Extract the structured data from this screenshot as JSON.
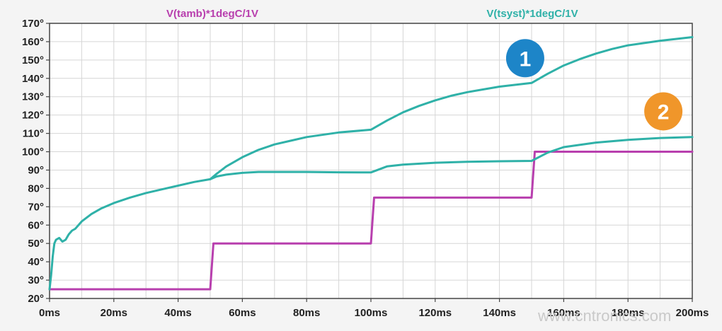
{
  "chart_data": {
    "type": "line",
    "x_unit": "ms",
    "y_unit": "°",
    "xlim": [
      0,
      200
    ],
    "ylim": [
      20,
      170
    ],
    "x_ticks": [
      0,
      20,
      40,
      60,
      80,
      100,
      120,
      140,
      160,
      180,
      200
    ],
    "x_tick_labels": [
      "0ms",
      "20ms",
      "40ms",
      "60ms",
      "80ms",
      "100ms",
      "120ms",
      "140ms",
      "160ms",
      "180ms",
      "200ms"
    ],
    "y_ticks": [
      20,
      30,
      40,
      50,
      60,
      70,
      80,
      90,
      100,
      110,
      120,
      130,
      140,
      150,
      160,
      170
    ],
    "y_tick_labels": [
      "20°",
      "30°",
      "40°",
      "50°",
      "60°",
      "70°",
      "80°",
      "90°",
      "100°",
      "110°",
      "120°",
      "130°",
      "140°",
      "150°",
      "160°",
      "170°"
    ],
    "grid": true,
    "legend_placement": "top",
    "series": [
      {
        "name": "V(tamb)*1degC/1V",
        "color": "#b83fae",
        "x": [
          0,
          50,
          51,
          100,
          101,
          150,
          151,
          200
        ],
        "y": [
          25,
          25,
          50,
          50,
          75,
          75,
          100,
          100
        ]
      },
      {
        "name": "V(tsyst)*1degC/1V",
        "color": "#2fb1a8",
        "curves": [
          {
            "x": [
              0,
              0.5,
              1,
              1.5,
              2,
              3,
              4,
              5,
              6,
              7,
              8,
              10,
              13,
              16,
              20,
              25,
              30,
              35,
              40,
              45,
              50
            ],
            "y": [
              25,
              33,
              43,
              50,
              52,
              53,
              51,
              52,
              55,
              57,
              58,
              62,
              66,
              69,
              72,
              75,
              77.5,
              79.5,
              81.5,
              83.5,
              85
            ]
          },
          {
            "x": [
              50,
              52,
              55,
              60,
              65,
              70,
              75,
              80,
              90,
              100,
              105,
              110,
              115,
              120,
              125,
              130,
              140,
              150,
              155,
              160,
              165,
              170,
              175,
              180,
              190,
              200
            ],
            "y": [
              85,
              88,
              92,
              97,
              101,
              104,
              106,
              108,
              110.5,
              112,
              117,
              121.5,
              125,
              128,
              130.5,
              132.5,
              135.5,
              137.5,
              142.5,
              147,
              150.5,
              153.5,
              156,
              158,
              160.5,
              162.5
            ]
          },
          {
            "x": [
              50,
              52,
              55,
              60,
              65,
              70,
              80,
              90,
              100,
              105,
              110,
              120,
              130,
              140,
              150,
              155,
              160,
              170,
              180,
              190,
              200
            ],
            "y": [
              85,
              86.5,
              87.5,
              88.5,
              89,
              89,
              89,
              88.8,
              88.7,
              92,
              93,
              94,
              94.5,
              94.8,
              95,
              99.5,
              102.5,
              105,
              106.5,
              107.5,
              108
            ]
          }
        ]
      }
    ],
    "annotations": [
      {
        "label": "1",
        "color": "#1d85c8",
        "x": 148,
        "y": 151
      },
      {
        "label": "2",
        "color": "#f0962a",
        "x": 191,
        "y": 122
      }
    ],
    "watermark": "www.cntronics.com"
  }
}
